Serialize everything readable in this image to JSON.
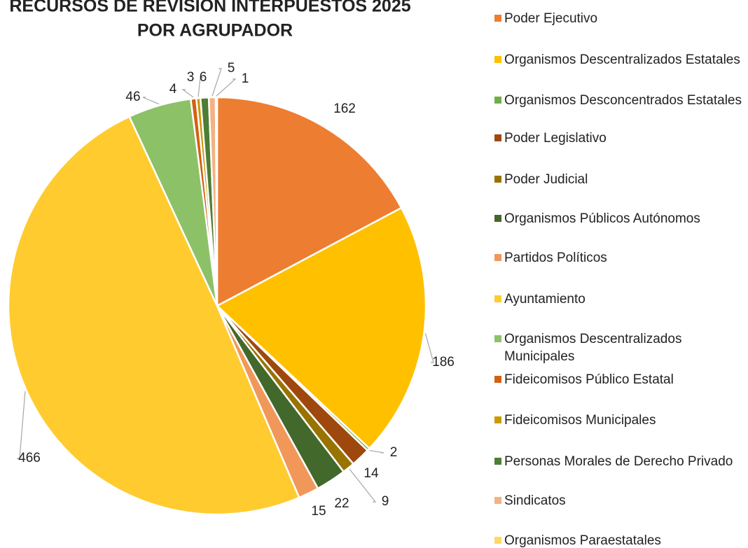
{
  "chart_data": {
    "type": "pie",
    "title": "RECURSOS DE REVISION INTERPUESTOS 2025",
    "subtitle": "POR AGRUPADOR",
    "categories": [
      "Poder Ejecutivo",
      "Organismos Descentralizados Estatales",
      "Organismos Desconcentrados Estatales",
      "Poder Legislativo",
      "Poder Judicial",
      "Organismos Públicos Autónomos",
      "Partidos Políticos",
      "Ayuntamiento",
      "Organismos Descentralizados Municipales",
      "Fideicomisos Público Estatal",
      "Fideicomisos Municipales",
      "Personas Morales de Derecho Privado",
      "Sindicatos",
      "Organismos Paraestatales"
    ],
    "values": [
      162,
      186,
      2,
      14,
      9,
      22,
      15,
      466,
      46,
      4,
      3,
      6,
      5,
      1
    ],
    "colors": [
      "#ED7D31",
      "#FFC000",
      "#70AD47",
      "#9E480E",
      "#997300",
      "#43682B",
      "#F1975A",
      "#FFCB2E",
      "#8CC168",
      "#D26012",
      "#CC9A00",
      "#4E7D35",
      "#F4B183",
      "#FFD966"
    ],
    "legend": "right"
  }
}
